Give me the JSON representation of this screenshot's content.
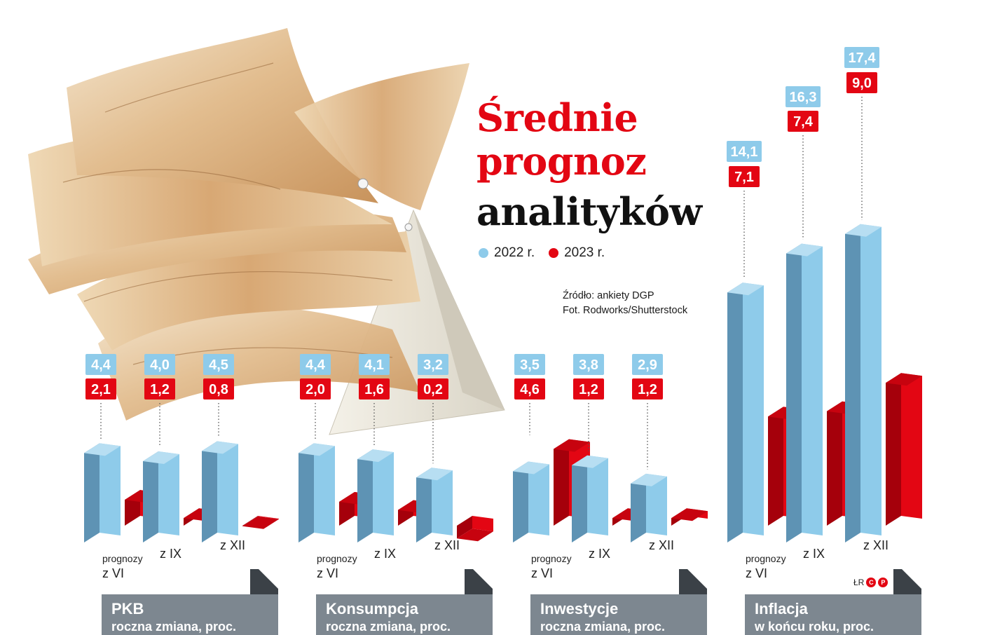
{
  "title": {
    "line1": "Średnie",
    "line2": "prognoz",
    "line3": "analityków"
  },
  "legend": [
    {
      "label": "2022 r.",
      "color": "#8ecbea"
    },
    {
      "label": "2023 r.",
      "color": "#e30613"
    }
  ],
  "source": {
    "line1": "Źródło: ankiety DGP",
    "line2": "Fot. Rodworks/Shutterstock"
  },
  "credit": {
    "initials": "ŁR",
    "logo": "CP"
  },
  "chart_data": [
    {
      "type": "bar",
      "title": "PKB",
      "subtitle": "roczna zmiana, proc.",
      "categories": [
        "prognozy z VI",
        "z IX",
        "z XII"
      ],
      "series": [
        {
          "name": "2022 r.",
          "values": [
            4.4,
            4.0,
            4.5
          ],
          "labels": [
            "4,4",
            "4,0",
            "4,5"
          ]
        },
        {
          "name": "2023 r.",
          "values": [
            2.1,
            1.2,
            0.8
          ],
          "labels": [
            "2,1",
            "1,2",
            "0,8"
          ]
        }
      ]
    },
    {
      "type": "bar",
      "title": "Konsumpcja",
      "subtitle": "roczna zmiana, proc.",
      "categories": [
        "prognozy z VI",
        "z IX",
        "z XII"
      ],
      "series": [
        {
          "name": "2022 r.",
          "values": [
            4.4,
            4.1,
            3.2
          ],
          "labels": [
            "4,4",
            "4,1",
            "3,2"
          ]
        },
        {
          "name": "2023 r.",
          "values": [
            2.0,
            1.6,
            0.2
          ],
          "labels": [
            "2,0",
            "1,6",
            "0,2"
          ]
        }
      ]
    },
    {
      "type": "bar",
      "title": "Inwestycje",
      "subtitle": "roczna zmiana, proc.",
      "categories": [
        "prognozy z VI",
        "z IX",
        "z XII"
      ],
      "series": [
        {
          "name": "2022 r.",
          "values": [
            3.5,
            3.8,
            2.9
          ],
          "labels": [
            "3,5",
            "3,8",
            "2,9"
          ]
        },
        {
          "name": "2023 r.",
          "values": [
            4.6,
            1.2,
            1.2
          ],
          "labels": [
            "4,6",
            "1,2",
            "1,2"
          ]
        }
      ]
    },
    {
      "type": "bar",
      "title": "Inflacja",
      "subtitle": "w końcu roku, proc.",
      "categories": [
        "prognozy z VI",
        "z IX",
        "z XII"
      ],
      "series": [
        {
          "name": "2022 r.",
          "values": [
            14.1,
            16.3,
            17.4
          ],
          "labels": [
            "14,1",
            "16,3",
            "17,4"
          ]
        },
        {
          "name": "2023 r.",
          "values": [
            7.1,
            7.4,
            9.0
          ],
          "labels": [
            "7,1",
            "7,4",
            "9,0"
          ]
        }
      ]
    }
  ],
  "category_labels": {
    "first_top": "prognozy",
    "first_bottom": "z VI",
    "second": "z IX",
    "third": "z XII"
  },
  "colors": {
    "blue_front": "#8ecbea",
    "blue_side": "#5e93b4",
    "blue_top": "#b7def2",
    "red_front": "#e30613",
    "red_side": "#a5000b",
    "red_top": "#c7030f",
    "label_blue": "#8ecbea",
    "label_red": "#e30613",
    "panel_gray": "#7d8790"
  }
}
